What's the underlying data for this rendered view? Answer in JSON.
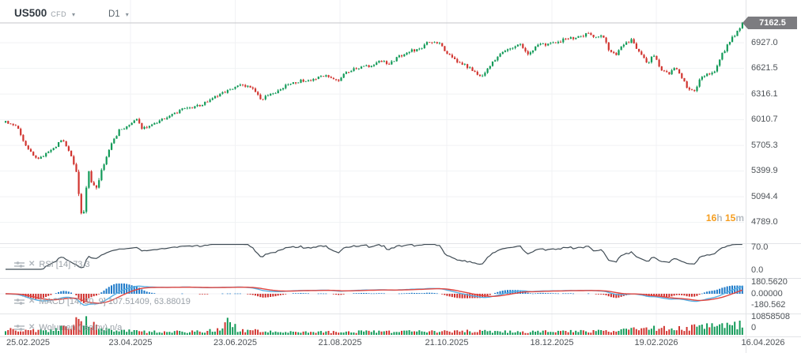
{
  "header": {
    "symbol": "US500",
    "instrument_type": "CFD",
    "timeframe": "D1"
  },
  "countdown": {
    "hours": "16",
    "hours_unit": "h",
    "minutes": "15",
    "minutes_unit": "m"
  },
  "price_axis": {
    "current_price": "7162.5",
    "ticks": [
      "6927.0",
      "6621.5",
      "6316.1",
      "6010.7",
      "5705.3",
      "5399.9",
      "5094.4",
      "4789.0"
    ]
  },
  "time_axis": {
    "labels": [
      "25.02.2025",
      "23.04.2025",
      "23.06.2025",
      "21.08.2025",
      "21.10.2025",
      "18.12.2025",
      "19.02.2026",
      "16.04.2026"
    ]
  },
  "indicators": {
    "rsi": {
      "label": "RSI [14] 73.3",
      "ticks": [
        "70.0",
        "0.0"
      ]
    },
    "macd": {
      "label": "MACD [14, 30, 9] 107.51409, 63.88019",
      "ticks": [
        "180.5620",
        "0.00000",
        "-180.562"
      ]
    },
    "volume": {
      "label": "Wolumen (realny) n/a",
      "ticks": [
        "10858508",
        "0"
      ]
    }
  },
  "colors": {
    "bull": "#129a58",
    "bear": "#d1342f",
    "rsi_line": "#3f4b54",
    "macd_line": "#56aee3",
    "macd_signal": "#e1453f",
    "hist_positive": "#1b78c8",
    "hist_negative": "#cf2b29",
    "countdown_accent": "#f59d1e",
    "price_tag_bg": "#7c7c80",
    "grid": "#f1f2f4",
    "separator": "#e2e4e7",
    "axis_text": "#4d5257",
    "label_text": "#9aa1a8",
    "price_line": "#c4c6c9"
  },
  "chart_data": {
    "type": "candlestick",
    "title": "US500 CFD D1",
    "symbol": "US500",
    "timeframe": "D1",
    "x_range": [
      "25.02.2025",
      "16.04.2026"
    ],
    "y_axis_ticks": [
      6927.0,
      6621.5,
      6316.1,
      6010.7,
      5705.3,
      5399.9,
      5094.4,
      4789.0
    ],
    "current_price": 7162.5,
    "num_candles": 293,
    "grid": true,
    "legend_position": "top-left",
    "price_path_anchors": [
      [
        0.0,
        5980
      ],
      [
        0.015,
        5930
      ],
      [
        0.029,
        5680
      ],
      [
        0.043,
        5530
      ],
      [
        0.058,
        5620
      ],
      [
        0.077,
        5770
      ],
      [
        0.09,
        5560
      ],
      [
        0.097,
        5390
      ],
      [
        0.1,
        5060
      ],
      [
        0.104,
        4850
      ],
      [
        0.108,
        4990
      ],
      [
        0.111,
        5430
      ],
      [
        0.117,
        5260
      ],
      [
        0.122,
        5160
      ],
      [
        0.13,
        5420
      ],
      [
        0.14,
        5650
      ],
      [
        0.154,
        5890
      ],
      [
        0.168,
        5940
      ],
      [
        0.178,
        6010
      ],
      [
        0.186,
        5900
      ],
      [
        0.202,
        5960
      ],
      [
        0.224,
        6060
      ],
      [
        0.245,
        6150
      ],
      [
        0.266,
        6180
      ],
      [
        0.282,
        6280
      ],
      [
        0.304,
        6360
      ],
      [
        0.32,
        6420
      ],
      [
        0.334,
        6390
      ],
      [
        0.347,
        6260
      ],
      [
        0.363,
        6320
      ],
      [
        0.384,
        6440
      ],
      [
        0.405,
        6480
      ],
      [
        0.421,
        6500
      ],
      [
        0.437,
        6540
      ],
      [
        0.451,
        6480
      ],
      [
        0.464,
        6590
      ],
      [
        0.48,
        6620
      ],
      [
        0.496,
        6660
      ],
      [
        0.507,
        6710
      ],
      [
        0.52,
        6680
      ],
      [
        0.534,
        6760
      ],
      [
        0.548,
        6820
      ],
      [
        0.563,
        6860
      ],
      [
        0.577,
        6950
      ],
      [
        0.59,
        6900
      ],
      [
        0.598,
        6820
      ],
      [
        0.614,
        6700
      ],
      [
        0.63,
        6620
      ],
      [
        0.646,
        6530
      ],
      [
        0.662,
        6700
      ],
      [
        0.683,
        6870
      ],
      [
        0.699,
        6900
      ],
      [
        0.708,
        6790
      ],
      [
        0.721,
        6890
      ],
      [
        0.742,
        6930
      ],
      [
        0.758,
        6960
      ],
      [
        0.774,
        6990
      ],
      [
        0.79,
        7030
      ],
      [
        0.801,
        6980
      ],
      [
        0.81,
        7000
      ],
      [
        0.819,
        6850
      ],
      [
        0.828,
        6790
      ],
      [
        0.839,
        6900
      ],
      [
        0.849,
        6960
      ],
      [
        0.862,
        6790
      ],
      [
        0.871,
        6680
      ],
      [
        0.879,
        6780
      ],
      [
        0.89,
        6600
      ],
      [
        0.901,
        6550
      ],
      [
        0.908,
        6650
      ],
      [
        0.919,
        6480
      ],
      [
        0.929,
        6350
      ],
      [
        0.935,
        6340
      ],
      [
        0.943,
        6500
      ],
      [
        0.951,
        6550
      ],
      [
        0.958,
        6570
      ],
      [
        0.965,
        6620
      ],
      [
        0.972,
        6780
      ],
      [
        0.98,
        6900
      ],
      [
        0.987,
        6990
      ],
      [
        0.994,
        7080
      ],
      [
        1.0,
        7162.5
      ]
    ],
    "volume_max": 10858508,
    "volume_profile_anchors": [
      [
        0.0,
        0.3
      ],
      [
        0.03,
        0.22
      ],
      [
        0.06,
        0.28
      ],
      [
        0.08,
        0.5
      ],
      [
        0.09,
        0.45
      ],
      [
        0.098,
        0.85
      ],
      [
        0.103,
        1.0
      ],
      [
        0.112,
        0.75
      ],
      [
        0.125,
        0.45
      ],
      [
        0.15,
        0.25
      ],
      [
        0.2,
        0.18
      ],
      [
        0.27,
        0.2
      ],
      [
        0.295,
        0.35
      ],
      [
        0.304,
        0.9
      ],
      [
        0.315,
        0.3
      ],
      [
        0.36,
        0.18
      ],
      [
        0.42,
        0.16
      ],
      [
        0.48,
        0.18
      ],
      [
        0.55,
        0.2
      ],
      [
        0.6,
        0.22
      ],
      [
        0.65,
        0.2
      ],
      [
        0.7,
        0.18
      ],
      [
        0.75,
        0.2
      ],
      [
        0.8,
        0.22
      ],
      [
        0.85,
        0.3
      ],
      [
        0.88,
        0.38
      ],
      [
        0.91,
        0.35
      ],
      [
        0.94,
        0.45
      ],
      [
        0.97,
        0.5
      ],
      [
        1.0,
        0.6
      ]
    ],
    "indicator_data": {
      "rsi": {
        "period": 14,
        "last_value": 73.3,
        "axis_ticks": [
          70.0,
          0.0
        ]
      },
      "macd": {
        "fast": 14,
        "slow": 30,
        "signal": 9,
        "last_macd": 107.51409,
        "last_signal": 63.88019,
        "axis_ticks": [
          180.562,
          0.0,
          -180.562
        ]
      }
    }
  }
}
